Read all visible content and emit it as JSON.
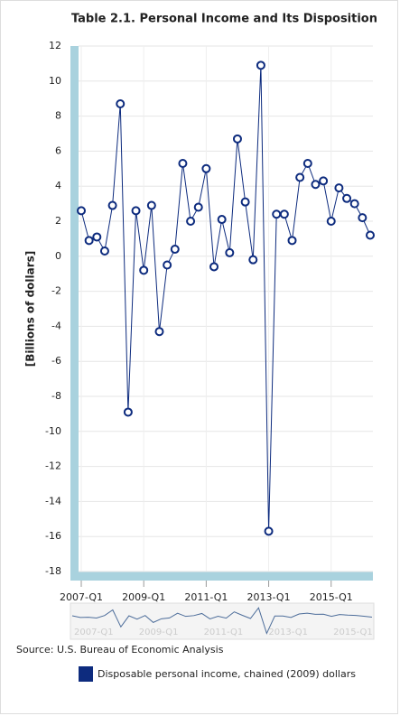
{
  "chart_data": {
    "type": "line",
    "title": "Table 2.1. Personal Income and Its Disposition",
    "y_label": "[Billions of dollars]",
    "source": "Source: U.S. Bureau of Economic Analysis",
    "categories": [
      "2007-Q1",
      null,
      null,
      null,
      null,
      null,
      null,
      null,
      "2009-Q1",
      null,
      null,
      null,
      null,
      null,
      null,
      null,
      "2011-Q1",
      null,
      null,
      null,
      null,
      null,
      null,
      null,
      "2013-Q1",
      null,
      null,
      null,
      null,
      null,
      null,
      null,
      "2015-Q1",
      null,
      null,
      null,
      null,
      null
    ],
    "series": [
      {
        "name": "Disposable personal income, chained (2009) dollars",
        "color": "#0d2b7e",
        "values": [
          2.6,
          0.9,
          1.1,
          0.3,
          2.9,
          8.7,
          -8.9,
          2.6,
          -0.8,
          2.9,
          -4.3,
          -0.5,
          0.4,
          5.3,
          2.0,
          2.8,
          5.0,
          -0.6,
          2.1,
          0.2,
          6.7,
          3.1,
          -0.2,
          10.9,
          -15.7,
          2.4,
          2.4,
          0.9,
          4.5,
          5.3,
          4.1,
          4.3,
          2.0,
          3.9,
          3.3,
          3.0,
          2.2,
          1.2
        ]
      }
    ],
    "ylim": [
      -18,
      12
    ],
    "yticks": [
      -18,
      -16,
      -14,
      -12,
      -10,
      -8,
      -6,
      -4,
      -2,
      0,
      2,
      4,
      6,
      8,
      10,
      12
    ],
    "grid": true
  }
}
